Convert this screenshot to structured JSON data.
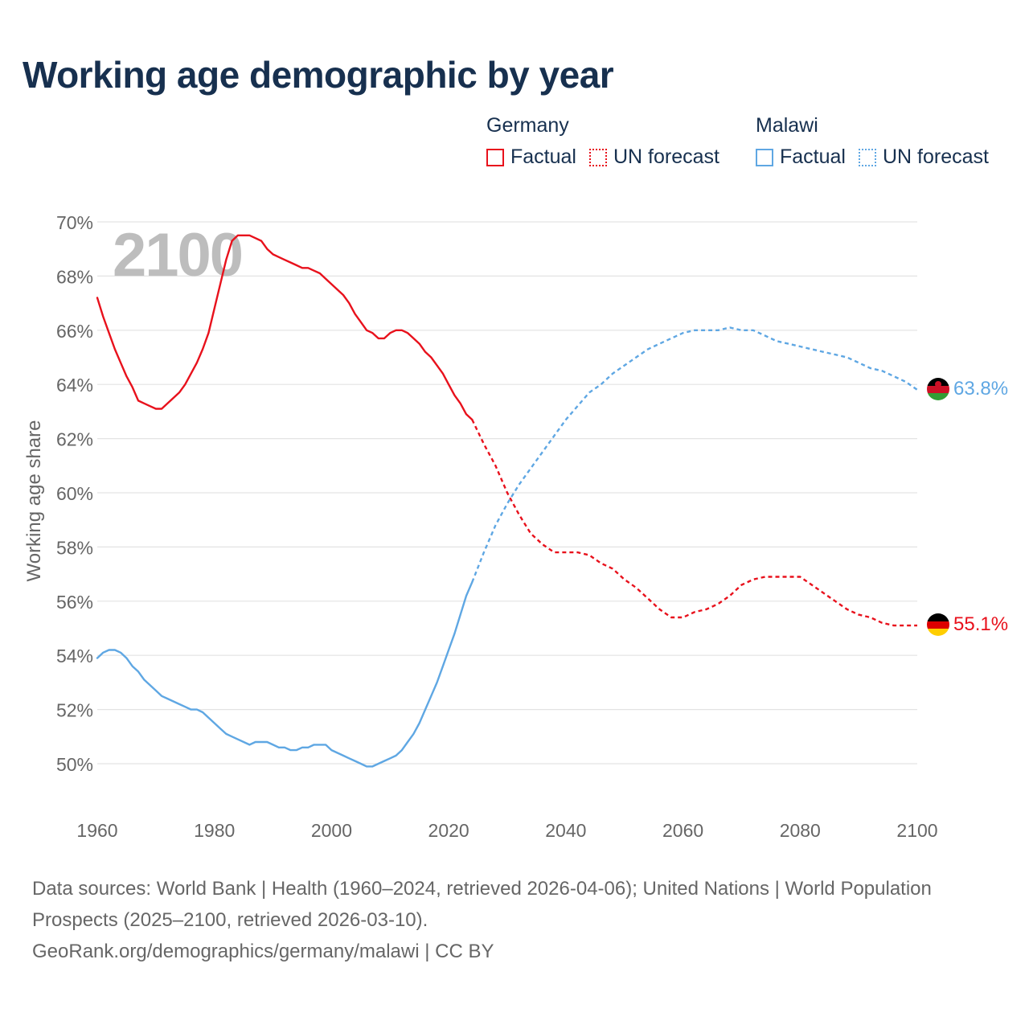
{
  "title": "Working age demographic by year",
  "legend": {
    "groups": [
      {
        "country": "Germany",
        "factual_label": "Factual",
        "forecast_label": "UN forecast",
        "color": "#e8111c"
      },
      {
        "country": "Malawi",
        "factual_label": "Factual",
        "forecast_label": "UN forecast",
        "color": "#5fa7e3"
      }
    ]
  },
  "year_watermark": "2100",
  "footer": {
    "sources": "Data sources: World Bank | Health (1960–2024, retrieved 2026-04-06); United Nations | World Population Prospects (2025–2100, retrieved 2026-03-10).",
    "credit": "GeoRank.org/demographics/germany/malawi | CC BY"
  },
  "chart_data": {
    "type": "line",
    "title": "Working age demographic by year",
    "xlabel": "",
    "ylabel": "Working age share",
    "xlim": [
      1960,
      2100
    ],
    "ylim": [
      48,
      70
    ],
    "x_ticks": [
      1960,
      1980,
      2000,
      2020,
      2040,
      2060,
      2080,
      2100
    ],
    "y_ticks": [
      50,
      52,
      54,
      56,
      58,
      60,
      62,
      64,
      66,
      68,
      70
    ],
    "y_tick_labels": [
      "50%",
      "52%",
      "54%",
      "56%",
      "58%",
      "60%",
      "62%",
      "64%",
      "66%",
      "68%",
      "70%"
    ],
    "grid": true,
    "series": [
      {
        "name": "Germany",
        "color": "#e8111c",
        "end_label": "55.1%",
        "flag": "germany-flag",
        "factual": {
          "x": [
            1960,
            1961,
            1962,
            1963,
            1964,
            1965,
            1966,
            1967,
            1968,
            1969,
            1970,
            1971,
            1972,
            1973,
            1974,
            1975,
            1976,
            1977,
            1978,
            1979,
            1980,
            1981,
            1982,
            1983,
            1984,
            1985,
            1986,
            1987,
            1988,
            1989,
            1990,
            1991,
            1992,
            1993,
            1994,
            1995,
            1996,
            1997,
            1998,
            1999,
            2000,
            2001,
            2002,
            2003,
            2004,
            2005,
            2006,
            2007,
            2008,
            2009,
            2010,
            2011,
            2012,
            2013,
            2014,
            2015,
            2016,
            2017,
            2018,
            2019,
            2020,
            2021,
            2022,
            2023,
            2024
          ],
          "y": [
            67.2,
            66.5,
            65.9,
            65.3,
            64.8,
            64.3,
            63.9,
            63.4,
            63.3,
            63.2,
            63.1,
            63.1,
            63.3,
            63.5,
            63.7,
            64.0,
            64.4,
            64.8,
            65.3,
            65.9,
            66.8,
            67.7,
            68.6,
            69.3,
            69.5,
            69.5,
            69.5,
            69.4,
            69.3,
            69.0,
            68.8,
            68.7,
            68.6,
            68.5,
            68.4,
            68.3,
            68.3,
            68.2,
            68.1,
            67.9,
            67.7,
            67.5,
            67.3,
            67.0,
            66.6,
            66.3,
            66.0,
            65.9,
            65.7,
            65.7,
            65.9,
            66.0,
            66.0,
            65.9,
            65.7,
            65.5,
            65.2,
            65.0,
            64.7,
            64.4,
            64.0,
            63.6,
            63.3,
            62.9,
            62.7
          ]
        },
        "forecast": {
          "x": [
            2024,
            2026,
            2028,
            2030,
            2032,
            2034,
            2036,
            2038,
            2040,
            2042,
            2044,
            2046,
            2048,
            2050,
            2052,
            2054,
            2056,
            2058,
            2060,
            2062,
            2064,
            2066,
            2068,
            2070,
            2072,
            2074,
            2076,
            2078,
            2080,
            2082,
            2084,
            2086,
            2088,
            2090,
            2092,
            2094,
            2096,
            2098,
            2100
          ],
          "y": [
            62.7,
            61.8,
            61.0,
            60.0,
            59.2,
            58.5,
            58.1,
            57.8,
            57.8,
            57.8,
            57.7,
            57.4,
            57.2,
            56.8,
            56.5,
            56.1,
            55.7,
            55.4,
            55.4,
            55.6,
            55.7,
            55.9,
            56.2,
            56.6,
            56.8,
            56.9,
            56.9,
            56.9,
            56.9,
            56.6,
            56.3,
            56.0,
            55.7,
            55.5,
            55.4,
            55.2,
            55.1,
            55.1,
            55.1
          ]
        }
      },
      {
        "name": "Malawi",
        "color": "#5fa7e3",
        "end_label": "63.8%",
        "flag": "malawi-flag",
        "factual": {
          "x": [
            1960,
            1961,
            1962,
            1963,
            1964,
            1965,
            1966,
            1967,
            1968,
            1969,
            1970,
            1971,
            1972,
            1973,
            1974,
            1975,
            1976,
            1977,
            1978,
            1979,
            1980,
            1981,
            1982,
            1983,
            1984,
            1985,
            1986,
            1987,
            1988,
            1989,
            1990,
            1991,
            1992,
            1993,
            1994,
            1995,
            1996,
            1997,
            1998,
            1999,
            2000,
            2001,
            2002,
            2003,
            2004,
            2005,
            2006,
            2007,
            2008,
            2009,
            2010,
            2011,
            2012,
            2013,
            2014,
            2015,
            2016,
            2017,
            2018,
            2019,
            2020,
            2021,
            2022,
            2023,
            2024
          ],
          "y": [
            53.9,
            54.1,
            54.2,
            54.2,
            54.1,
            53.9,
            53.6,
            53.4,
            53.1,
            52.9,
            52.7,
            52.5,
            52.4,
            52.3,
            52.2,
            52.1,
            52.0,
            52.0,
            51.9,
            51.7,
            51.5,
            51.3,
            51.1,
            51.0,
            50.9,
            50.8,
            50.7,
            50.8,
            50.8,
            50.8,
            50.7,
            50.6,
            50.6,
            50.5,
            50.5,
            50.6,
            50.6,
            50.7,
            50.7,
            50.7,
            50.5,
            50.4,
            50.3,
            50.2,
            50.1,
            50.0,
            49.9,
            49.9,
            50.0,
            50.1,
            50.2,
            50.3,
            50.5,
            50.8,
            51.1,
            51.5,
            52.0,
            52.5,
            53.0,
            53.6,
            54.2,
            54.8,
            55.5,
            56.2,
            56.7
          ]
        },
        "forecast": {
          "x": [
            2024,
            2026,
            2028,
            2030,
            2032,
            2034,
            2036,
            2038,
            2040,
            2042,
            2044,
            2046,
            2048,
            2050,
            2052,
            2054,
            2056,
            2058,
            2060,
            2062,
            2064,
            2066,
            2068,
            2070,
            2072,
            2074,
            2076,
            2078,
            2080,
            2082,
            2084,
            2086,
            2088,
            2090,
            2092,
            2094,
            2096,
            2098,
            2100
          ],
          "y": [
            56.7,
            57.8,
            58.8,
            59.6,
            60.3,
            60.9,
            61.5,
            62.1,
            62.7,
            63.2,
            63.7,
            64.0,
            64.4,
            64.7,
            65.0,
            65.3,
            65.5,
            65.7,
            65.9,
            66.0,
            66.0,
            66.0,
            66.1,
            66.0,
            66.0,
            65.8,
            65.6,
            65.5,
            65.4,
            65.3,
            65.2,
            65.1,
            65.0,
            64.8,
            64.6,
            64.5,
            64.3,
            64.1,
            63.8
          ]
        }
      }
    ]
  }
}
